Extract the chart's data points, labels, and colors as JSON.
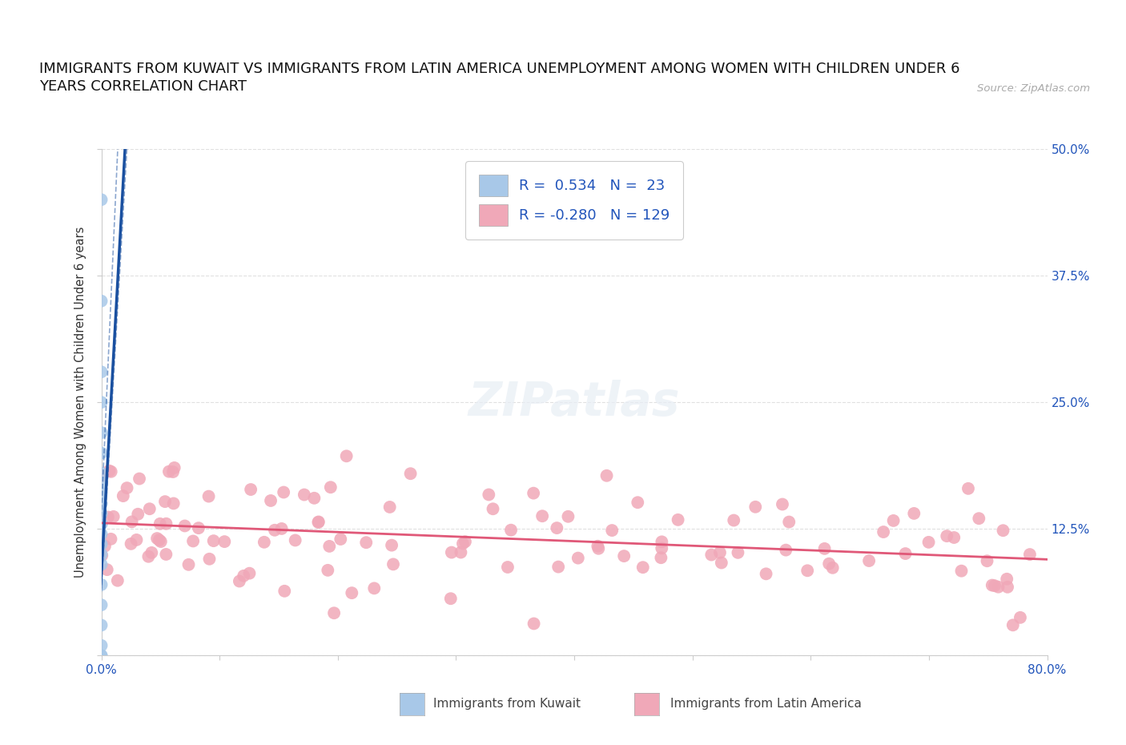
{
  "title_line1": "IMMIGRANTS FROM KUWAIT VS IMMIGRANTS FROM LATIN AMERICA UNEMPLOYMENT AMONG WOMEN WITH CHILDREN UNDER 6",
  "title_line2": "YEARS CORRELATION CHART",
  "source": "Source: ZipAtlas.com",
  "ylabel": "Unemployment Among Women with Children Under 6 years",
  "xlim": [
    0.0,
    0.8
  ],
  "ylim": [
    0.0,
    0.5
  ],
  "r_kuwait": 0.534,
  "n_kuwait": 23,
  "r_latin": -0.28,
  "n_latin": 129,
  "color_kuwait": "#a8c8e8",
  "color_latin": "#f0a8b8",
  "line_color_kuwait": "#1a50a0",
  "line_color_latin": "#e05878",
  "legend_label_kuwait": "Immigrants from Kuwait",
  "legend_label_latin": "Immigrants from Latin America",
  "background_color": "#ffffff",
  "title_fontsize": 13,
  "tick_label_color": "#2255bb"
}
